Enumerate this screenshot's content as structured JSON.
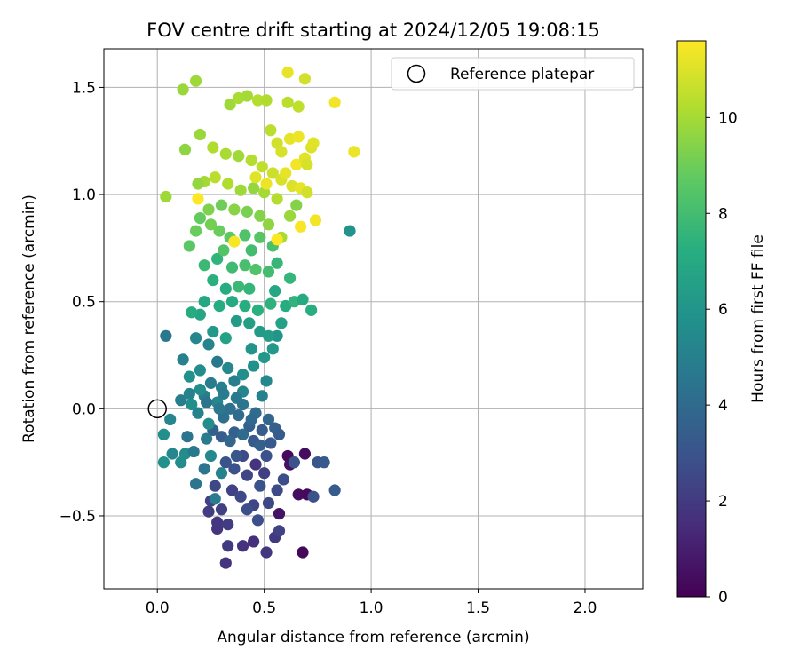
{
  "chart_data": {
    "type": "scatter",
    "title": "FOV centre drift starting at 2024/12/05 19:08:15",
    "xlabel": "Angular distance from reference (arcmin)",
    "ylabel": "Rotation from reference (arcmin)",
    "xlim": [
      -0.25,
      2.27
    ],
    "ylim": [
      -0.84,
      1.68
    ],
    "xticks": [
      0.0,
      0.5,
      1.0,
      1.5,
      2.0
    ],
    "xtick_labels": [
      "0.0",
      "0.5",
      "1.0",
      "1.5",
      "2.0"
    ],
    "yticks": [
      -0.5,
      0.0,
      0.5,
      1.0,
      1.5
    ],
    "ytick_labels": [
      "−0.5",
      "0.0",
      "0.5",
      "1.0",
      "1.5"
    ],
    "grid": true,
    "legend": {
      "placement": "top-right",
      "entries": [
        "Reference platepar"
      ]
    },
    "reference_point": {
      "name": "Reference platepar",
      "x": 0.0,
      "y": 0.0
    },
    "colorbar": {
      "label": "Hours from first FF file",
      "colormap": "viridis",
      "range": [
        0,
        11.6
      ],
      "ticks": [
        0,
        2,
        4,
        6,
        8,
        10
      ],
      "tick_labels": [
        "0",
        "2",
        "4",
        "6",
        "8",
        "10"
      ]
    },
    "point_fields": [
      "x",
      "y",
      "hours"
    ],
    "points": [
      [
        0.32,
        -0.72,
        1.8
      ],
      [
        0.28,
        -0.56,
        1.8
      ],
      [
        0.28,
        -0.53,
        1.9
      ],
      [
        0.33,
        -0.64,
        2.0
      ],
      [
        0.4,
        -0.64,
        1.7
      ],
      [
        0.45,
        -0.62,
        1.6
      ],
      [
        0.51,
        -0.67,
        1.9
      ],
      [
        0.55,
        -0.6,
        2.0
      ],
      [
        0.57,
        -0.57,
        2.3
      ],
      [
        0.68,
        -0.67,
        0.2
      ],
      [
        0.66,
        -0.4,
        0.4
      ],
      [
        0.7,
        -0.4,
        0.3
      ],
      [
        0.61,
        -0.22,
        0.3
      ],
      [
        0.62,
        -0.26,
        0.5
      ],
      [
        0.69,
        -0.21,
        0.4
      ],
      [
        0.57,
        -0.49,
        0.6
      ],
      [
        0.46,
        -0.26,
        1.8
      ],
      [
        0.5,
        -0.3,
        2.2
      ],
      [
        0.45,
        -0.45,
        2.4
      ],
      [
        0.52,
        -0.44,
        2.5
      ],
      [
        0.56,
        -0.38,
        2.6
      ],
      [
        0.59,
        -0.33,
        2.7
      ],
      [
        0.51,
        -0.22,
        2.9
      ],
      [
        0.4,
        -0.22,
        2.6
      ],
      [
        0.42,
        -0.31,
        2.4
      ],
      [
        0.35,
        -0.38,
        2.3
      ],
      [
        0.3,
        -0.47,
        2.2
      ],
      [
        0.36,
        -0.28,
        2.9
      ],
      [
        0.32,
        -0.25,
        3.0
      ],
      [
        0.27,
        -0.36,
        2.5
      ],
      [
        0.45,
        -0.15,
        3.2
      ],
      [
        0.49,
        -0.1,
        3.4
      ],
      [
        0.53,
        -0.16,
        3.2
      ],
      [
        0.43,
        -0.08,
        3.6
      ],
      [
        0.36,
        -0.11,
        3.5
      ],
      [
        0.3,
        -0.13,
        3.4
      ],
      [
        0.26,
        -0.1,
        3.6
      ],
      [
        0.52,
        -0.05,
        3.8
      ],
      [
        0.46,
        -0.02,
        4.1
      ],
      [
        0.38,
        -0.03,
        4.0
      ],
      [
        0.34,
        0.0,
        4.3
      ],
      [
        0.31,
        -0.04,
        4.2
      ],
      [
        0.47,
        -0.52,
        2.8
      ],
      [
        0.39,
        -0.41,
        2.6
      ],
      [
        0.33,
        -0.54,
        2.1
      ],
      [
        0.42,
        -0.47,
        2.8
      ],
      [
        0.48,
        -0.36,
        3.0
      ],
      [
        0.64,
        -0.25,
        2.9
      ],
      [
        0.75,
        -0.25,
        3.1
      ],
      [
        0.78,
        -0.25,
        3.2
      ],
      [
        0.83,
        -0.38,
        3.3
      ],
      [
        0.73,
        -0.41,
        2.9
      ],
      [
        0.25,
        -0.43,
        2.3
      ],
      [
        0.24,
        -0.48,
        2.1
      ],
      [
        0.18,
        -0.35,
        4.5
      ],
      [
        0.13,
        -0.21,
        5.6
      ],
      [
        0.11,
        -0.25,
        5.6
      ],
      [
        0.07,
        -0.21,
        5.3
      ],
      [
        0.03,
        -0.25,
        5.8
      ],
      [
        0.03,
        -0.12,
        5.7
      ],
      [
        0.06,
        -0.05,
        5.3
      ],
      [
        0.14,
        -0.13,
        4.4
      ],
      [
        0.17,
        -0.2,
        4.7
      ],
      [
        0.22,
        -0.28,
        4.5
      ],
      [
        0.23,
        -0.14,
        4.8
      ],
      [
        0.19,
        -0.02,
        5.1
      ],
      [
        0.22,
        0.06,
        4.9
      ],
      [
        0.28,
        0.03,
        5.3
      ],
      [
        0.24,
        -0.07,
        5.6
      ],
      [
        0.04,
        0.34,
        4.6
      ],
      [
        0.11,
        0.04,
        4.9
      ],
      [
        0.15,
        0.07,
        5.1
      ],
      [
        0.2,
        0.09,
        5.6
      ],
      [
        0.25,
        0.12,
        4.8
      ],
      [
        0.3,
        0.1,
        5.0
      ],
      [
        0.36,
        0.13,
        4.9
      ],
      [
        0.4,
        0.08,
        5.2
      ],
      [
        0.28,
        0.22,
        4.7
      ],
      [
        0.24,
        0.3,
        5.2
      ],
      [
        0.18,
        0.33,
        5.3
      ],
      [
        0.12,
        0.23,
        5.0
      ],
      [
        0.15,
        0.15,
        5.8
      ],
      [
        0.2,
        0.18,
        5.6
      ],
      [
        0.33,
        0.19,
        5.4
      ],
      [
        0.4,
        0.16,
        5.7
      ],
      [
        0.44,
        0.28,
        6.0
      ],
      [
        0.5,
        0.24,
        6.1
      ],
      [
        0.54,
        0.28,
        6.2
      ],
      [
        0.56,
        0.34,
        6.0
      ],
      [
        0.48,
        0.36,
        6.3
      ],
      [
        0.43,
        0.4,
        6.5
      ],
      [
        0.37,
        0.41,
        6.3
      ],
      [
        0.32,
        0.33,
        6.6
      ],
      [
        0.26,
        0.36,
        6.1
      ],
      [
        0.2,
        0.44,
        6.8
      ],
      [
        0.16,
        0.45,
        7.1
      ],
      [
        0.22,
        0.5,
        6.9
      ],
      [
        0.29,
        0.48,
        7.1
      ],
      [
        0.35,
        0.5,
        7.0
      ],
      [
        0.41,
        0.48,
        7.2
      ],
      [
        0.47,
        0.46,
        7.3
      ],
      [
        0.53,
        0.49,
        7.4
      ],
      [
        0.6,
        0.48,
        7.1
      ],
      [
        0.64,
        0.5,
        7.5
      ],
      [
        0.68,
        0.51,
        7.0
      ],
      [
        0.72,
        0.46,
        7.2
      ],
      [
        0.55,
        0.55,
        6.9
      ],
      [
        0.43,
        0.56,
        7.6
      ],
      [
        0.38,
        0.57,
        7.8
      ],
      [
        0.32,
        0.56,
        7.1
      ],
      [
        0.26,
        0.6,
        7.3
      ],
      [
        0.22,
        0.67,
        7.8
      ],
      [
        0.28,
        0.7,
        7.5
      ],
      [
        0.35,
        0.66,
        7.9
      ],
      [
        0.41,
        0.67,
        8.1
      ],
      [
        0.46,
        0.65,
        8.3
      ],
      [
        0.52,
        0.64,
        8.0
      ],
      [
        0.56,
        0.68,
        7.7
      ],
      [
        0.54,
        0.76,
        8.2
      ],
      [
        0.48,
        0.8,
        8.5
      ],
      [
        0.41,
        0.81,
        8.3
      ],
      [
        0.34,
        0.8,
        8.7
      ],
      [
        0.29,
        0.83,
        8.9
      ],
      [
        0.25,
        0.86,
        9.1
      ],
      [
        0.2,
        0.89,
        8.8
      ],
      [
        0.15,
        0.76,
        8.6
      ],
      [
        0.18,
        0.83,
        8.9
      ],
      [
        0.24,
        0.93,
        9.3
      ],
      [
        0.3,
        0.95,
        9.0
      ],
      [
        0.36,
        0.93,
        9.5
      ],
      [
        0.42,
        0.92,
        9.2
      ],
      [
        0.48,
        0.9,
        9.4
      ],
      [
        0.52,
        0.86,
        9.6
      ],
      [
        0.58,
        0.8,
        10.1
      ],
      [
        0.62,
        0.9,
        9.8
      ],
      [
        0.65,
        0.95,
        9.4
      ],
      [
        0.56,
        0.98,
        10.3
      ],
      [
        0.5,
        1.01,
        10.0
      ],
      [
        0.45,
        1.03,
        9.7
      ],
      [
        0.39,
        1.02,
        9.9
      ],
      [
        0.33,
        1.05,
        10.2
      ],
      [
        0.27,
        1.08,
        10.4
      ],
      [
        0.22,
        1.06,
        10.0
      ],
      [
        0.19,
        1.05,
        9.7
      ],
      [
        0.04,
        0.99,
        9.9
      ],
      [
        0.13,
        1.21,
        9.6
      ],
      [
        0.2,
        1.28,
        9.8
      ],
      [
        0.26,
        1.22,
        10.2
      ],
      [
        0.32,
        1.19,
        10.1
      ],
      [
        0.38,
        1.18,
        9.9
      ],
      [
        0.44,
        1.16,
        10.3
      ],
      [
        0.49,
        1.13,
        10.5
      ],
      [
        0.54,
        1.1,
        10.7
      ],
      [
        0.58,
        1.07,
        10.9
      ],
      [
        0.63,
        1.04,
        11.0
      ],
      [
        0.67,
        1.03,
        11.2
      ],
      [
        0.7,
        1.01,
        10.8
      ],
      [
        0.46,
        1.08,
        11.1
      ],
      [
        0.51,
        1.05,
        11.3
      ],
      [
        0.6,
        1.1,
        11.2
      ],
      [
        0.65,
        1.14,
        11.4
      ],
      [
        0.69,
        1.17,
        11.1
      ],
      [
        0.72,
        1.22,
        11.0
      ],
      [
        0.56,
        1.24,
        10.8
      ],
      [
        0.53,
        1.3,
        10.4
      ],
      [
        0.58,
        1.2,
        10.9
      ],
      [
        0.62,
        1.26,
        11.2
      ],
      [
        0.66,
        1.27,
        11.3
      ],
      [
        0.7,
        1.14,
        10.9
      ],
      [
        0.73,
        1.24,
        11.1
      ],
      [
        0.67,
        0.85,
        11.5
      ],
      [
        0.74,
        0.88,
        11.4
      ],
      [
        0.92,
        1.2,
        11.3
      ],
      [
        0.56,
        0.79,
        11.6
      ],
      [
        0.36,
        0.78,
        11.5
      ],
      [
        0.19,
        0.98,
        11.6
      ],
      [
        0.12,
        1.49,
        9.8
      ],
      [
        0.18,
        1.53,
        9.9
      ],
      [
        0.34,
        1.42,
        9.9
      ],
      [
        0.38,
        1.45,
        10.1
      ],
      [
        0.42,
        1.46,
        10.0
      ],
      [
        0.47,
        1.44,
        10.3
      ],
      [
        0.51,
        1.44,
        10.2
      ],
      [
        0.61,
        1.43,
        10.4
      ],
      [
        0.66,
        1.41,
        10.5
      ],
      [
        0.69,
        1.54,
        10.8
      ],
      [
        0.61,
        1.57,
        11.2
      ],
      [
        0.83,
        1.43,
        11.4
      ],
      [
        0.9,
        0.83,
        5.9
      ],
      [
        0.16,
        0.02,
        5.7
      ],
      [
        0.25,
        -0.22,
        5.4
      ],
      [
        0.3,
        -0.3,
        5.1
      ],
      [
        0.27,
        -0.42,
        4.8
      ],
      [
        0.44,
        -0.05,
        3.9
      ],
      [
        0.55,
        -0.09,
        3.5
      ],
      [
        0.37,
        -0.22,
        3.1
      ],
      [
        0.4,
        0.02,
        4.5
      ],
      [
        0.49,
        0.06,
        5.0
      ],
      [
        0.51,
        0.13,
        5.4
      ],
      [
        0.45,
        0.2,
        5.8
      ],
      [
        0.52,
        0.34,
        6.4
      ],
      [
        0.58,
        0.4,
        6.6
      ],
      [
        0.62,
        0.61,
        7.6
      ],
      [
        0.44,
        0.74,
        8.0
      ],
      [
        0.31,
        0.74,
        8.4
      ],
      [
        0.57,
        -0.12,
        3.3
      ],
      [
        0.48,
        -0.17,
        3.6
      ],
      [
        0.34,
        -0.15,
        3.8
      ],
      [
        0.4,
        -0.12,
        4.0
      ],
      [
        0.29,
        0.0,
        4.6
      ],
      [
        0.23,
        0.03,
        4.4
      ],
      [
        0.37,
        0.05,
        4.7
      ],
      [
        0.31,
        0.07,
        4.8
      ]
    ]
  }
}
